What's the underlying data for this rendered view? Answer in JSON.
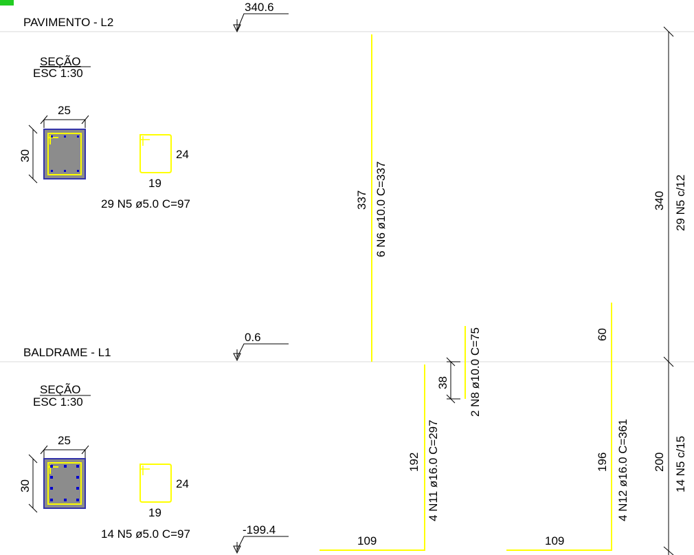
{
  "levels": {
    "top": {
      "name": "PAVIMENTO - L2",
      "elevation": "340.6"
    },
    "bottom": {
      "name": "BALDRAME - L1",
      "elevation": "0.6"
    },
    "foundation": {
      "elevation": "-199.4"
    }
  },
  "sections": {
    "upper": {
      "title": "SEÇÃO",
      "scale": "ESC 1:30",
      "width": "25",
      "height": "30",
      "stirrup_h": "24",
      "stirrup_w": "19",
      "stirrup_spec": "29 N5 ø5.0 C=97"
    },
    "lower": {
      "title": "SEÇÃO",
      "scale": "ESC 1:30",
      "width": "25",
      "height": "30",
      "stirrup_h": "24",
      "stirrup_w": "19",
      "stirrup_spec": "14 N5 ø5.0 C=97"
    }
  },
  "bars": {
    "n6": {
      "length": "337",
      "spec": "6 N6 ø10.0 C=337"
    },
    "n11": {
      "length": "192",
      "spec": "4 N11 ø16.0 C=297",
      "hook": "109"
    },
    "n8": {
      "length": "38",
      "spec": "2 N8 ø10.0 C=75"
    },
    "n12": {
      "length": "196",
      "spec": "4 N12 ø16.0 C=361",
      "hook": "109",
      "lap": "60"
    }
  },
  "stirrup_zones": {
    "upper": {
      "length": "340",
      "spec": "29 N5 c/12"
    },
    "lower": {
      "length": "200",
      "spec": "14 N5 c/15"
    }
  },
  "colors": {
    "rebar": "#ffff00",
    "concrete": "#8c8c8c",
    "section_outline": "#3333aa",
    "bar_dot": "#0000cc",
    "line": "#000000",
    "level_line": "#d8d8d8"
  }
}
